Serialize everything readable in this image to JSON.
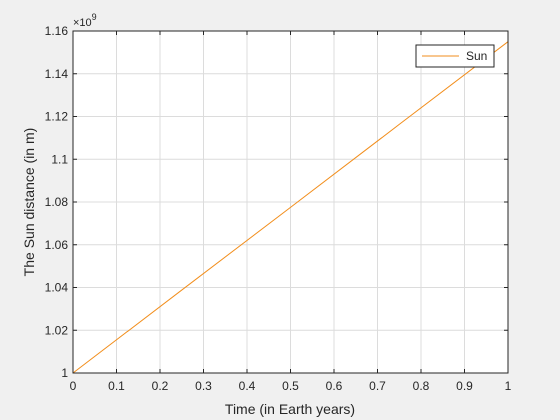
{
  "chart_data": {
    "type": "line",
    "title": "",
    "xlabel": "Time (in Earth years)",
    "ylabel": "The Sun distance (in m)",
    "y_exponent_label": "×10",
    "y_exponent_power": "9",
    "y_multiplier": 1000000000,
    "xlim": [
      0,
      1
    ],
    "ylim": [
      1.0,
      1.16
    ],
    "x_ticks": [
      0,
      0.1,
      0.2,
      0.3,
      0.4,
      0.5,
      0.6,
      0.7,
      0.8,
      0.9,
      1
    ],
    "x_tick_labels": [
      "0",
      "0.1",
      "0.2",
      "0.3",
      "0.4",
      "0.5",
      "0.6",
      "0.7",
      "0.8",
      "0.9",
      "1"
    ],
    "y_ticks": [
      1.0,
      1.02,
      1.04,
      1.06,
      1.08,
      1.1,
      1.12,
      1.14,
      1.16
    ],
    "y_tick_labels": [
      "1",
      "1.02",
      "1.04",
      "1.06",
      "1.08",
      "1.1",
      "1.12",
      "1.14",
      "1.16"
    ],
    "grid": true,
    "legend": {
      "position": "top-right"
    },
    "series": [
      {
        "name": "Sun",
        "color": "#f28e1c",
        "x": [
          0,
          0.25,
          0.5,
          0.75,
          1
        ],
        "y": [
          1.0,
          1.0388,
          1.0775,
          1.1163,
          1.155
        ]
      }
    ]
  }
}
